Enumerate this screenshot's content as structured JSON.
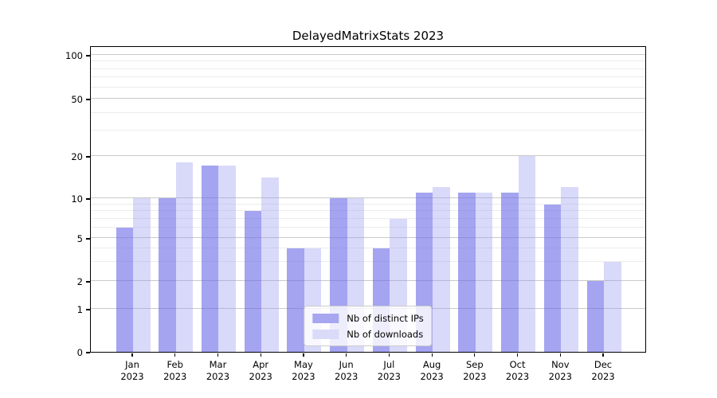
{
  "figure_title": "DelayedMatrixStats 2023",
  "chart_data": {
    "type": "bar",
    "title": "DelayedMatrixStats 2023",
    "categories": [
      "Jan",
      "Feb",
      "Mar",
      "Apr",
      "May",
      "Jun",
      "Jul",
      "Aug",
      "Sep",
      "Oct",
      "Nov",
      "Dec"
    ],
    "x_tick_second_line": "2023",
    "series": [
      {
        "name": "Nb of distinct IPs",
        "values": [
          6,
          10,
          17,
          8,
          4,
          10,
          4,
          11,
          11,
          11,
          9,
          2
        ]
      },
      {
        "name": "Nb of downloads",
        "values": [
          10,
          18,
          17,
          14,
          4,
          10,
          7,
          12,
          11,
          20,
          12,
          3
        ]
      }
    ],
    "y_axis": {
      "scale": "log-like",
      "tick_labels": [
        0,
        1,
        2,
        5,
        10,
        20,
        50,
        100
      ],
      "minor_gridline_values": [
        3,
        4,
        6,
        7,
        8,
        9,
        30,
        40,
        60,
        70,
        80,
        90
      ]
    },
    "legend": {
      "position": "lower center",
      "entries": [
        "Nb of distinct IPs",
        "Nb of downloads"
      ]
    },
    "grid": "on"
  },
  "colors": {
    "bar_distinct_ips": "rgba(108,108,232,0.62)",
    "bar_downloads": "rgba(155,155,239,0.38)",
    "legend_swatch_distinct_ips": "#a6a6f1",
    "legend_swatch_downloads": "#dadaf9",
    "gridline_major": "#c9c9c9",
    "gridline_minor": "#ececec",
    "axis": "#000000"
  }
}
